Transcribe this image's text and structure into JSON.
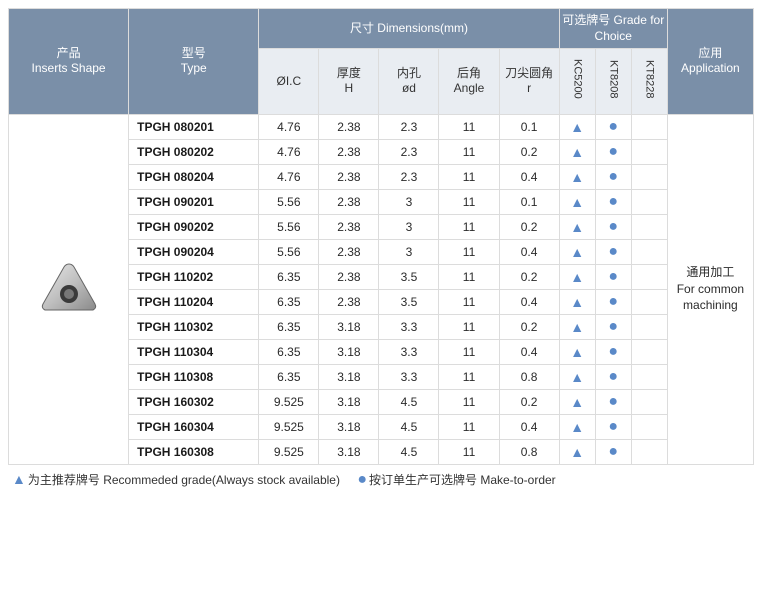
{
  "headers": {
    "shape": "产品\nInserts Shape",
    "type": "型号\nType",
    "dims_group": "尺寸 Dimensions(mm)",
    "grade_group": "可选牌号 Grade for Choice",
    "app": "应用\nApplication",
    "dim_cols": [
      "ØI.C",
      "厚度\nH",
      "内孔\nød",
      "后角\nAngle",
      "刀尖圆角\nr"
    ],
    "grade_cols": [
      "KC5200",
      "KT8208",
      "KT8228"
    ]
  },
  "colors": {
    "triangle": "#5a89c8",
    "dot": "#5a89c8"
  },
  "application_text": "通用加工\nFor common machining",
  "rows": [
    {
      "type": "TPGH 080201",
      "ic": "4.76",
      "h": "2.38",
      "od": "2.3",
      "ang": "11",
      "r": "0.1",
      "g": [
        true,
        true,
        false
      ]
    },
    {
      "type": "TPGH 080202",
      "ic": "4.76",
      "h": "2.38",
      "od": "2.3",
      "ang": "11",
      "r": "0.2",
      "g": [
        true,
        true,
        false
      ]
    },
    {
      "type": "TPGH 080204",
      "ic": "4.76",
      "h": "2.38",
      "od": "2.3",
      "ang": "11",
      "r": "0.4",
      "g": [
        true,
        true,
        false
      ]
    },
    {
      "type": "TPGH 090201",
      "ic": "5.56",
      "h": "2.38",
      "od": "3",
      "ang": "11",
      "r": "0.1",
      "g": [
        true,
        true,
        false
      ]
    },
    {
      "type": "TPGH 090202",
      "ic": "5.56",
      "h": "2.38",
      "od": "3",
      "ang": "11",
      "r": "0.2",
      "g": [
        true,
        true,
        false
      ]
    },
    {
      "type": "TPGH 090204",
      "ic": "5.56",
      "h": "2.38",
      "od": "3",
      "ang": "11",
      "r": "0.4",
      "g": [
        true,
        true,
        false
      ]
    },
    {
      "type": "TPGH 110202",
      "ic": "6.35",
      "h": "2.38",
      "od": "3.5",
      "ang": "11",
      "r": "0.2",
      "g": [
        true,
        true,
        false
      ]
    },
    {
      "type": "TPGH 110204",
      "ic": "6.35",
      "h": "2.38",
      "od": "3.5",
      "ang": "11",
      "r": "0.4",
      "g": [
        true,
        true,
        false
      ]
    },
    {
      "type": "TPGH 110302",
      "ic": "6.35",
      "h": "3.18",
      "od": "3.3",
      "ang": "11",
      "r": "0.2",
      "g": [
        true,
        true,
        false
      ]
    },
    {
      "type": "TPGH 110304",
      "ic": "6.35",
      "h": "3.18",
      "od": "3.3",
      "ang": "11",
      "r": "0.4",
      "g": [
        true,
        true,
        false
      ]
    },
    {
      "type": "TPGH 110308",
      "ic": "6.35",
      "h": "3.18",
      "od": "3.3",
      "ang": "11",
      "r": "0.8",
      "g": [
        true,
        true,
        false
      ]
    },
    {
      "type": "TPGH 160302",
      "ic": "9.525",
      "h": "3.18",
      "od": "4.5",
      "ang": "11",
      "r": "0.2",
      "g": [
        true,
        true,
        false
      ]
    },
    {
      "type": "TPGH 160304",
      "ic": "9.525",
      "h": "3.18",
      "od": "4.5",
      "ang": "11",
      "r": "0.4",
      "g": [
        true,
        true,
        false
      ]
    },
    {
      "type": "TPGH 160308",
      "ic": "9.525",
      "h": "3.18",
      "od": "4.5",
      "ang": "11",
      "r": "0.8",
      "g": [
        true,
        true,
        false
      ]
    }
  ],
  "legend": {
    "rec": "为主推荐牌号 Recommeded grade(Always stock available)",
    "mto": "按订单生产可选牌号 Make-to-order"
  }
}
